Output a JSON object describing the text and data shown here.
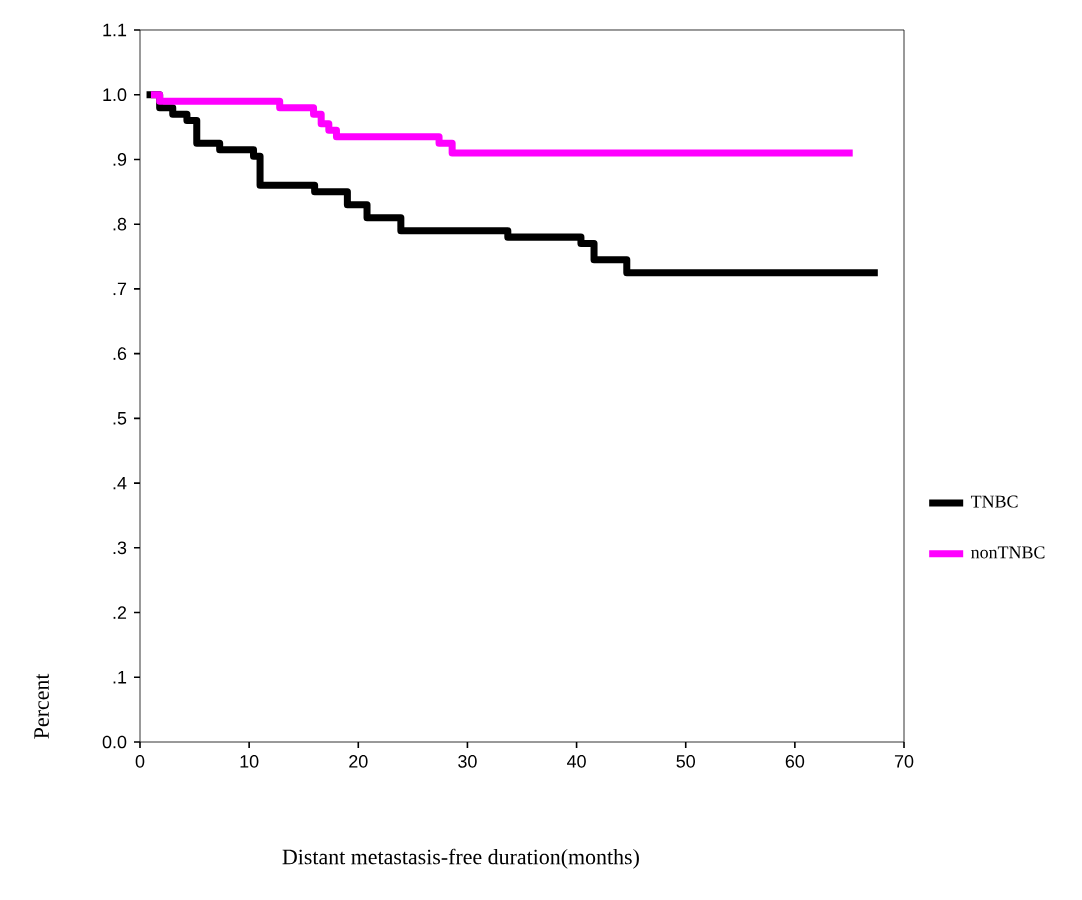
{
  "chart_data": {
    "type": "step",
    "xlabel": "Distant metastasis-free duration(months)",
    "ylabel": "Percent",
    "xlim": [
      0,
      70
    ],
    "xticks": [
      0,
      10,
      20,
      30,
      40,
      50,
      60,
      70
    ],
    "ylim": [
      0,
      1.1
    ],
    "yticks": [
      {
        "value": 0,
        "label": "0.0"
      },
      {
        "value": 0.1,
        "label": ".1"
      },
      {
        "value": 0.2,
        "label": ".2"
      },
      {
        "value": 0.3,
        "label": ".3"
      },
      {
        "value": 0.4,
        "label": ".4"
      },
      {
        "value": 0.5,
        "label": ".5"
      },
      {
        "value": 0.6,
        "label": ".6"
      },
      {
        "value": 0.7,
        "label": ".7"
      },
      {
        "value": 0.8,
        "label": ".8"
      },
      {
        "value": 0.9,
        "label": ".9"
      },
      {
        "value": 1.0,
        "label": "1.0"
      },
      {
        "value": 1.1,
        "label": "1.1"
      }
    ],
    "legend": "right",
    "grid": false,
    "series": [
      {
        "name": "TNBC",
        "color": "#000000",
        "x": [
          0.6,
          1.8,
          3.0,
          4.3,
          5.2,
          7.3,
          10.4,
          11.0,
          16,
          19,
          20.8,
          23.9,
          33.7,
          40.4,
          41.6,
          44.6,
          67.6
        ],
        "values": [
          1.0,
          0.98,
          0.97,
          0.96,
          0.925,
          0.915,
          0.905,
          0.86,
          0.85,
          0.83,
          0.81,
          0.79,
          0.78,
          0.77,
          0.745,
          0.725,
          0.725
        ]
      },
      {
        "name": "nonTNBC",
        "color": "#ff00ff",
        "x": [
          1.0,
          1.8,
          12.8,
          15.9,
          16.6,
          17.3,
          18.0,
          27.4,
          28.6,
          65.3
        ],
        "values": [
          1.0,
          0.99,
          0.98,
          0.97,
          0.955,
          0.945,
          0.935,
          0.925,
          0.91,
          0.91
        ]
      }
    ]
  }
}
